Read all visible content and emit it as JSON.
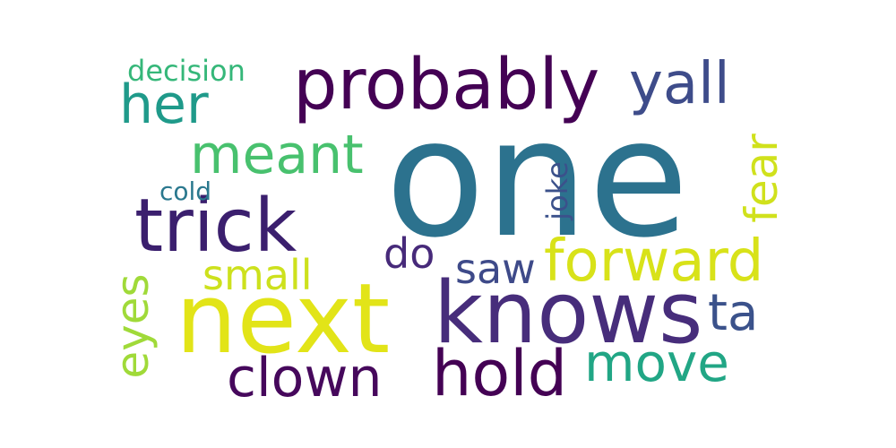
{
  "words": [
    {
      "text": "one",
      "color": "#2c728e",
      "orientation": "horizontal"
    },
    {
      "text": "next",
      "color": "#e2e418",
      "orientation": "horizontal"
    },
    {
      "text": "knows",
      "color": "#472d7b",
      "orientation": "horizontal"
    },
    {
      "text": "probably",
      "color": "#440154",
      "orientation": "horizontal"
    },
    {
      "text": "trick",
      "color": "#3b1f6e",
      "orientation": "horizontal"
    },
    {
      "text": "forward",
      "color": "#d8e219",
      "orientation": "horizontal"
    },
    {
      "text": "hold",
      "color": "#440154",
      "orientation": "horizontal"
    },
    {
      "text": "clown",
      "color": "#46085c",
      "orientation": "horizontal"
    },
    {
      "text": "move",
      "color": "#21a685",
      "orientation": "horizontal"
    },
    {
      "text": "meant",
      "color": "#48c16e",
      "orientation": "horizontal"
    },
    {
      "text": "yall",
      "color": "#3e4c8a",
      "orientation": "horizontal"
    },
    {
      "text": "her",
      "color": "#1f9a8a",
      "orientation": "horizontal"
    },
    {
      "text": "eyes",
      "color": "#a0da39",
      "orientation": "vertical"
    },
    {
      "text": "fear",
      "color": "#d0e11c",
      "orientation": "vertical"
    },
    {
      "text": "small",
      "color": "#cde11d",
      "orientation": "horizontal"
    },
    {
      "text": "saw",
      "color": "#3e4a89",
      "orientation": "horizontal"
    },
    {
      "text": "ta",
      "color": "#3b528b",
      "orientation": "horizontal"
    },
    {
      "text": "do",
      "color": "#472a7a",
      "orientation": "horizontal"
    },
    {
      "text": "decision",
      "color": "#35b779",
      "orientation": "horizontal"
    },
    {
      "text": "cold",
      "color": "#2a788e",
      "orientation": "horizontal"
    },
    {
      "text": "joke",
      "color": "#3b518b",
      "orientation": "vertical"
    }
  ]
}
